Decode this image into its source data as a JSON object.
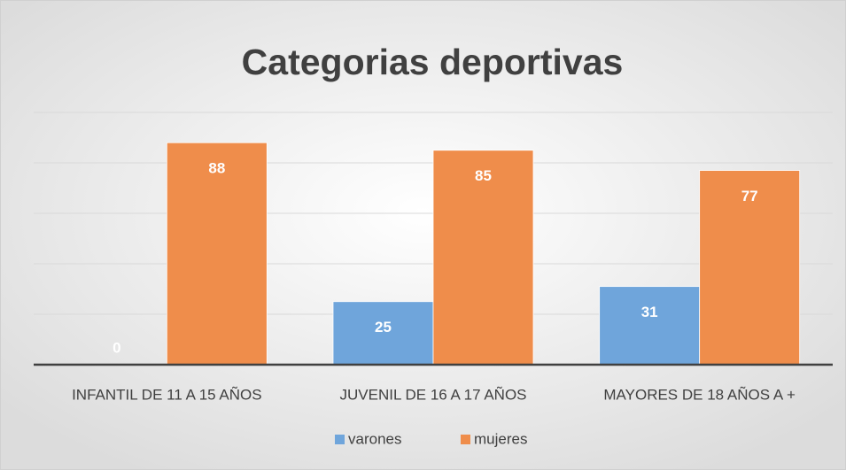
{
  "chart_data": {
    "type": "bar",
    "title": "Categorias deportivas",
    "categories": [
      "INFANTIL DE 11 A 15 AÑOS",
      "JUVENIL DE 16 A 17 AÑOS",
      "MAYORES DE 18 AÑOS A +"
    ],
    "series": [
      {
        "name": "varones",
        "color": "#6fa5db",
        "values": [
          0,
          25,
          31
        ]
      },
      {
        "name": "mujeres",
        "color": "#ef8d4b",
        "values": [
          88,
          85,
          77
        ]
      }
    ],
    "ylim": [
      0,
      100
    ],
    "yticks": [
      0,
      20,
      40,
      60,
      80,
      100
    ],
    "grid": true,
    "legend": "bottom"
  }
}
